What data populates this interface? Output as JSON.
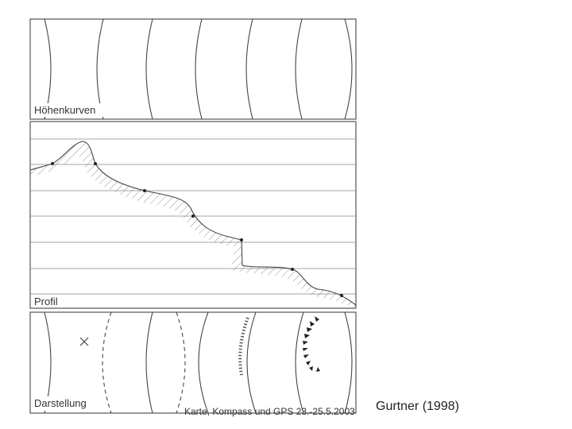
{
  "panels": [
    {
      "label": "Höhenkurven"
    },
    {
      "label": "Profil"
    },
    {
      "label": "Darstellung"
    }
  ],
  "credit": "Gurtner (1998)",
  "footer": "Karte, Kompass und GPS 23.-25.5.2003"
}
